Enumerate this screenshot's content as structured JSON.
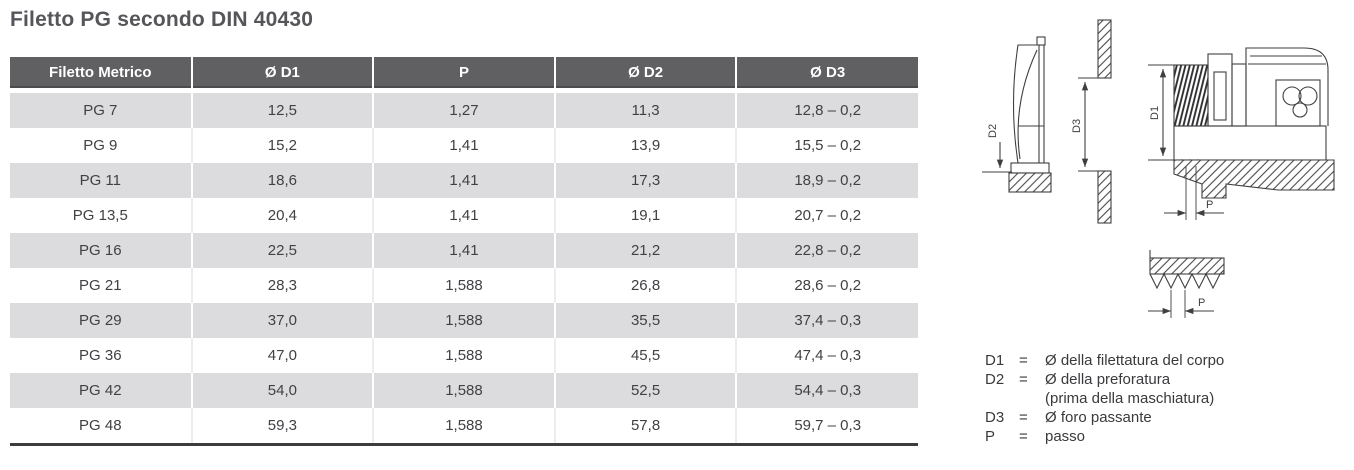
{
  "title": "Filetto PG secondo DIN 40430",
  "table": {
    "headers": [
      "Filetto Metrico",
      "Ø D1",
      "P",
      "Ø D2",
      "Ø D3"
    ],
    "rows": [
      [
        "PG 7",
        "12,5",
        "1,27",
        "11,3",
        "12,8 – 0,2"
      ],
      [
        "PG 9",
        "15,2",
        "1,41",
        "13,9",
        "15,5 – 0,2"
      ],
      [
        "PG 11",
        "18,6",
        "1,41",
        "17,3",
        "18,9 – 0,2"
      ],
      [
        "PG 13,5",
        "20,4",
        "1,41",
        "19,1",
        "20,7 – 0,2"
      ],
      [
        "PG 16",
        "22,5",
        "1,41",
        "21,2",
        "22,8 – 0,2"
      ],
      [
        "PG 21",
        "28,3",
        "1,588",
        "26,8",
        "28,6 – 0,2"
      ],
      [
        "PG 29",
        "37,0",
        "1,588",
        "35,5",
        "37,4 – 0,3"
      ],
      [
        "PG 36",
        "47,0",
        "1,588",
        "45,5",
        "47,4 – 0,3"
      ],
      [
        "PG 42",
        "54,0",
        "1,588",
        "52,5",
        "54,4 – 0,3"
      ],
      [
        "PG 48",
        "59,3",
        "1,588",
        "57,8",
        "59,7 – 0,3"
      ]
    ]
  },
  "diagram": {
    "labels": {
      "d1": "D1",
      "d2": "D2",
      "d3": "D3",
      "p": "P"
    }
  },
  "legend": {
    "items": [
      {
        "symbol": "D1",
        "eq": "=",
        "desc": "Ø della filettatura del corpo"
      },
      {
        "symbol": "D2",
        "eq": "=",
        "desc": "Ø della preforatura\n(prima della maschiatura)"
      },
      {
        "symbol": "D3",
        "eq": "=",
        "desc": "Ø foro passante"
      },
      {
        "symbol": "P",
        "eq": "=",
        "desc": "passo"
      }
    ]
  },
  "colors": {
    "header_bg": "#606062",
    "row_alt_bg": "#dcdcde",
    "body_text": "#414044",
    "line": "#3f3f41"
  }
}
